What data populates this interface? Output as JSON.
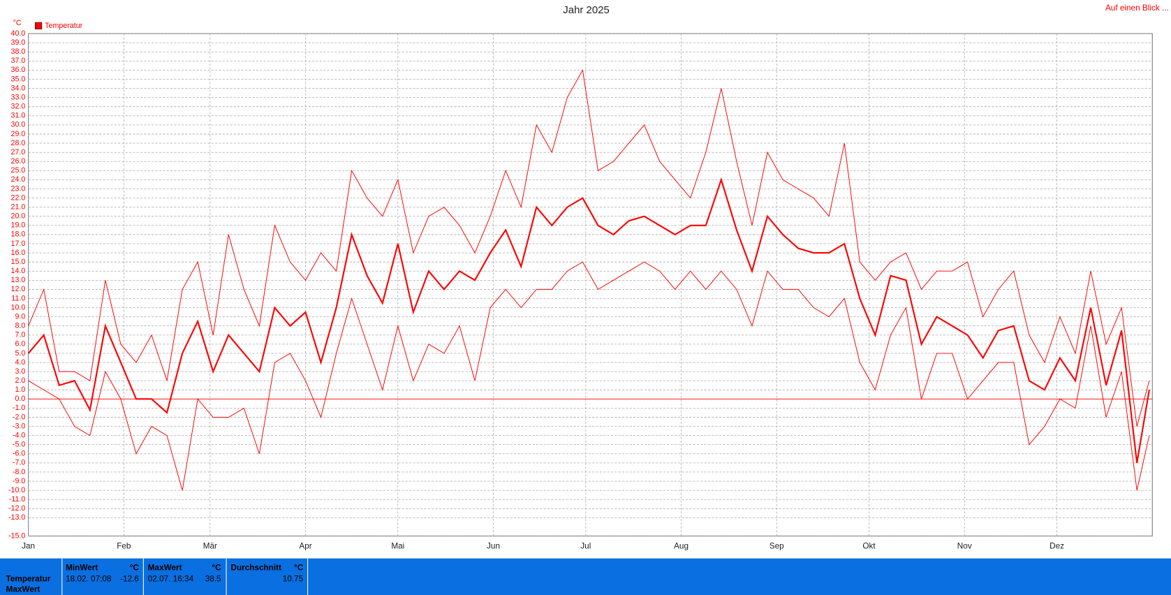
{
  "chart_data": {
    "type": "line",
    "title": "Jahr 2025",
    "link": "Auf einen Blick ...",
    "y_unit": "°C",
    "xlim": [
      0,
      365
    ],
    "xticks": [
      {
        "value": 0,
        "label": "Jan"
      },
      {
        "value": 31,
        "label": "Feb"
      },
      {
        "value": 59,
        "label": "Mär"
      },
      {
        "value": 90,
        "label": "Apr"
      },
      {
        "value": 120,
        "label": "Mai"
      },
      {
        "value": 151,
        "label": "Jun"
      },
      {
        "value": 181,
        "label": "Jul"
      },
      {
        "value": 212,
        "label": "Aug"
      },
      {
        "value": 243,
        "label": "Sep"
      },
      {
        "value": 273,
        "label": "Okt"
      },
      {
        "value": 304,
        "label": "Nov"
      },
      {
        "value": 334,
        "label": "Dez"
      }
    ],
    "ylim": [
      -15,
      40
    ],
    "yticks": [
      {
        "value": 40,
        "label": "40.0"
      },
      {
        "value": 39,
        "label": "39.0"
      },
      {
        "value": 38,
        "label": "38.0"
      },
      {
        "value": 37,
        "label": "37.0"
      },
      {
        "value": 36,
        "label": "36.0"
      },
      {
        "value": 35,
        "label": "35.0"
      },
      {
        "value": 34,
        "label": "34.0"
      },
      {
        "value": 33,
        "label": "33.0"
      },
      {
        "value": 32,
        "label": "32.0"
      },
      {
        "value": 31,
        "label": "31.0"
      },
      {
        "value": 30,
        "label": "30.0"
      },
      {
        "value": 29,
        "label": "29.0"
      },
      {
        "value": 28,
        "label": "28.0"
      },
      {
        "value": 27,
        "label": "27.0"
      },
      {
        "value": 26,
        "label": "26.0"
      },
      {
        "value": 25,
        "label": "25.0"
      },
      {
        "value": 24,
        "label": "24.0"
      },
      {
        "value": 23,
        "label": "23.0"
      },
      {
        "value": 22,
        "label": "22.0"
      },
      {
        "value": 21,
        "label": "21.0"
      },
      {
        "value": 20,
        "label": "20.0"
      },
      {
        "value": 19,
        "label": "19.0"
      },
      {
        "value": 18,
        "label": "18.0"
      },
      {
        "value": 17,
        "label": "17.0"
      },
      {
        "value": 16,
        "label": "16.0"
      },
      {
        "value": 15,
        "label": "15.0"
      },
      {
        "value": 14,
        "label": "14.0"
      },
      {
        "value": 13,
        "label": "13.0"
      },
      {
        "value": 12,
        "label": "12.0"
      },
      {
        "value": 11,
        "label": "11.0"
      },
      {
        "value": 10,
        "label": "10.0"
      },
      {
        "value": 9,
        "label": "9.0"
      },
      {
        "value": 8,
        "label": "8.0"
      },
      {
        "value": 7,
        "label": "7.0"
      },
      {
        "value": 6,
        "label": "6.0"
      },
      {
        "value": 5,
        "label": "5.0"
      },
      {
        "value": 4,
        "label": "4.0"
      },
      {
        "value": 3,
        "label": "3.0"
      },
      {
        "value": 2,
        "label": "2.0"
      },
      {
        "value": 1,
        "label": "1.0"
      },
      {
        "value": 0,
        "label": "0.0"
      },
      {
        "value": -1,
        "label": "-1.0"
      },
      {
        "value": -2,
        "label": "-2.0"
      },
      {
        "value": -3,
        "label": "-3.0"
      },
      {
        "value": -4,
        "label": "-4.0"
      },
      {
        "value": -5,
        "label": "-5.0"
      },
      {
        "value": -6,
        "label": "-6.0"
      },
      {
        "value": -7,
        "label": "-7.0"
      },
      {
        "value": -8,
        "label": "-8.0"
      },
      {
        "value": -9,
        "label": "-9.0"
      },
      {
        "value": -10,
        "label": "-10.0"
      },
      {
        "value": -11,
        "label": "-11.0"
      },
      {
        "value": -12,
        "label": "-12.0"
      },
      {
        "value": -13,
        "label": "-13.0"
      },
      {
        "value": -15,
        "label": "-15.0"
      }
    ],
    "grid": true,
    "x": [
      0,
      5,
      10,
      15,
      20,
      25,
      30,
      35,
      40,
      45,
      50,
      55,
      60,
      65,
      70,
      75,
      80,
      85,
      90,
      95,
      100,
      105,
      110,
      115,
      120,
      125,
      130,
      135,
      140,
      145,
      150,
      155,
      160,
      165,
      170,
      175,
      180,
      185,
      190,
      195,
      200,
      205,
      210,
      215,
      220,
      225,
      230,
      235,
      240,
      245,
      250,
      255,
      260,
      265,
      270,
      275,
      280,
      285,
      290,
      295,
      300,
      305,
      310,
      315,
      320,
      325,
      330,
      335,
      340,
      345,
      350,
      355,
      360,
      364
    ],
    "series": [
      {
        "name": "Temperatur",
        "color": "#ff0000",
        "values": [
          5,
          7,
          1.5,
          2,
          -1.2,
          8,
          4,
          0,
          0,
          -1.5,
          5,
          8.5,
          3,
          7,
          5,
          3,
          10,
          8,
          9.5,
          4,
          10,
          18,
          13.5,
          10.5,
          17,
          9.5,
          14,
          12,
          14,
          13,
          16,
          18.5,
          14.5,
          21,
          19,
          21,
          22,
          19,
          18,
          19.5,
          20,
          19,
          18,
          19,
          19,
          24,
          18.5,
          14,
          20,
          18,
          16.5,
          16,
          16,
          17,
          11,
          7,
          13.5,
          13,
          6,
          9,
          8,
          7,
          4.5,
          7.5,
          8,
          2,
          1,
          4.5,
          2,
          10,
          1.5,
          7.5,
          -7,
          1
        ]
      },
      {
        "color": "#ff0000",
        "values": [
          8,
          12,
          3,
          3,
          2,
          13,
          6,
          4,
          7,
          2,
          12,
          15,
          7,
          18,
          12,
          8,
          19,
          15,
          13,
          16,
          14,
          25,
          22,
          20,
          24,
          16,
          20,
          21,
          19,
          16,
          20,
          25,
          21,
          30,
          27,
          33,
          36,
          25,
          26,
          28,
          30,
          26,
          24,
          22,
          27,
          34,
          26,
          19,
          27,
          24,
          23,
          22,
          20,
          28,
          15,
          13,
          15,
          16,
          12,
          14,
          14,
          15,
          9,
          12,
          14,
          7,
          4,
          9,
          5,
          14,
          6,
          10,
          -3,
          2
        ]
      },
      {
        "color": "#ff0000",
        "values": [
          2,
          1,
          0,
          -3,
          -4,
          3,
          0,
          -6,
          -3,
          -4,
          -10,
          0,
          -2,
          -2,
          -1,
          -6,
          4,
          5,
          2,
          -2,
          5,
          11,
          6,
          1,
          8,
          2,
          6,
          5,
          8,
          2,
          10,
          12,
          10,
          12,
          12,
          14,
          15,
          12,
          13,
          14,
          15,
          14,
          12,
          14,
          12,
          14,
          12,
          8,
          14,
          12,
          12,
          10,
          9,
          11,
          4,
          1,
          7,
          10,
          0,
          5,
          5,
          0,
          2,
          4,
          4,
          -5,
          -3,
          0,
          -1,
          8,
          -2,
          3,
          -10,
          -4
        ]
      }
    ]
  },
  "footer": {
    "rows": [
      "Temperatur",
      "MaxWert"
    ],
    "columns": [
      {
        "header": "MinWert",
        "unit": "°C",
        "time": "18.02.  07:08",
        "value": "-12.6"
      },
      {
        "header": "MaxWert",
        "unit": "°C",
        "time": "02.07.  16:34",
        "value": "38.5"
      },
      {
        "header": "Durchschnitt",
        "unit": "°C",
        "value": "10.75"
      }
    ]
  }
}
